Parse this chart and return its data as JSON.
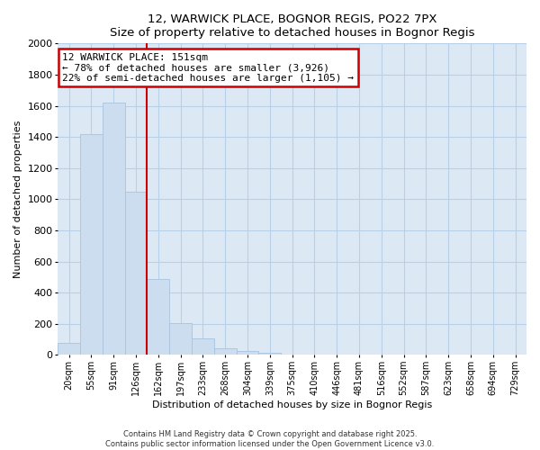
{
  "title1": "12, WARWICK PLACE, BOGNOR REGIS, PO22 7PX",
  "title2": "Size of property relative to detached houses in Bognor Regis",
  "xlabel": "Distribution of detached houses by size in Bognor Regis",
  "ylabel": "Number of detached properties",
  "bar_labels": [
    "20sqm",
    "55sqm",
    "91sqm",
    "126sqm",
    "162sqm",
    "197sqm",
    "233sqm",
    "268sqm",
    "304sqm",
    "339sqm",
    "375sqm",
    "410sqm",
    "446sqm",
    "481sqm",
    "516sqm",
    "552sqm",
    "587sqm",
    "623sqm",
    "658sqm",
    "694sqm",
    "729sqm"
  ],
  "bar_values": [
    80,
    1420,
    1620,
    1050,
    490,
    205,
    105,
    40,
    25,
    15,
    0,
    0,
    0,
    0,
    0,
    0,
    0,
    0,
    0,
    0,
    0
  ],
  "bar_color": "#ccddf0",
  "bar_edge_color": "#a8c4df",
  "vline_x_index": 4,
  "vline_color": "#cc0000",
  "ylim": [
    0,
    2000
  ],
  "yticks": [
    0,
    200,
    400,
    600,
    800,
    1000,
    1200,
    1400,
    1600,
    1800,
    2000
  ],
  "annotation_title": "12 WARWICK PLACE: 151sqm",
  "annotation_line1": "← 78% of detached houses are smaller (3,926)",
  "annotation_line2": "22% of semi-detached houses are larger (1,105) →",
  "annotation_box_color": "#ffffff",
  "annotation_box_edge": "#cc0000",
  "footer1": "Contains HM Land Registry data © Crown copyright and database right 2025.",
  "footer2": "Contains public sector information licensed under the Open Government Licence v3.0.",
  "background_color": "#ffffff",
  "plot_bg_color": "#dce9f5",
  "grid_color": "#b8cfe8"
}
